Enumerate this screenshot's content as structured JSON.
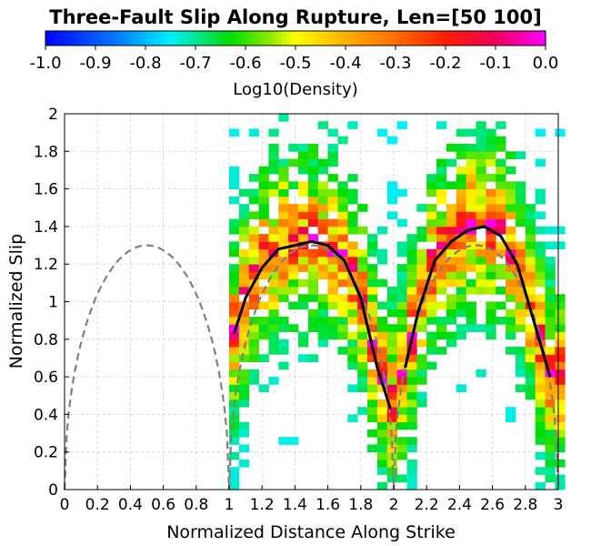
{
  "chart_data": {
    "type": "heatmap",
    "title": "Three-Fault Slip Along Rupture, Len=[50 100]",
    "xlabel": "Normalized Distance Along Strike",
    "ylabel": "Normalized Slip",
    "xlim": [
      0,
      3
    ],
    "ylim": [
      0,
      2
    ],
    "x_ticks": [
      0,
      0.2,
      0.4,
      0.6,
      0.8,
      1,
      1.2,
      1.4,
      1.6,
      1.8,
      2,
      2.2,
      2.4,
      2.6,
      2.8,
      3
    ],
    "y_ticks": [
      0,
      0.2,
      0.4,
      0.6,
      0.8,
      1,
      1.2,
      1.4,
      1.6,
      1.8,
      2
    ],
    "grid": true,
    "colorbar": {
      "label": "Log10(Density)",
      "ticks": [
        -1.0,
        -0.9,
        -0.8,
        -0.7,
        -0.6,
        -0.5,
        -0.4,
        -0.3,
        -0.2,
        -0.1,
        0.0
      ],
      "tick_labels": [
        "-1.0",
        "-0.9",
        "-0.8",
        "-0.7",
        "-0.6",
        "-0.5",
        "-0.4",
        "-0.3",
        "-0.2",
        "-0.1",
        "0.0"
      ],
      "range": [
        -1.0,
        0.0
      ],
      "colormap": "blue-cyan-green-yellow-orange-red-magenta",
      "placement": "top"
    },
    "heatmap": {
      "cell_width": 0.06,
      "cell_height": 0.04,
      "x_start": 1.0,
      "x_end": 3.0,
      "mean_curve_color": "#000000",
      "reference_curve_color": "#808080"
    },
    "mean_slip_curve": {
      "x": [
        1.03,
        1.1,
        1.2,
        1.3,
        1.4,
        1.5,
        1.6,
        1.7,
        1.8,
        1.9,
        1.98,
        2.07,
        2.15,
        2.25,
        2.35,
        2.45,
        2.55,
        2.65,
        2.75,
        2.85,
        2.95
      ],
      "y": [
        0.83,
        1.02,
        1.18,
        1.28,
        1.3,
        1.32,
        1.3,
        1.22,
        1.02,
        0.65,
        0.43,
        0.65,
        0.95,
        1.22,
        1.32,
        1.38,
        1.4,
        1.35,
        1.2,
        0.9,
        0.6
      ]
    },
    "reference_curves": [
      {
        "x_range": [
          0,
          1
        ],
        "peak": 1.3
      },
      {
        "x_range": [
          1,
          2
        ],
        "peak": 1.3
      },
      {
        "x_range": [
          2,
          3
        ],
        "peak": 1.3
      }
    ]
  }
}
